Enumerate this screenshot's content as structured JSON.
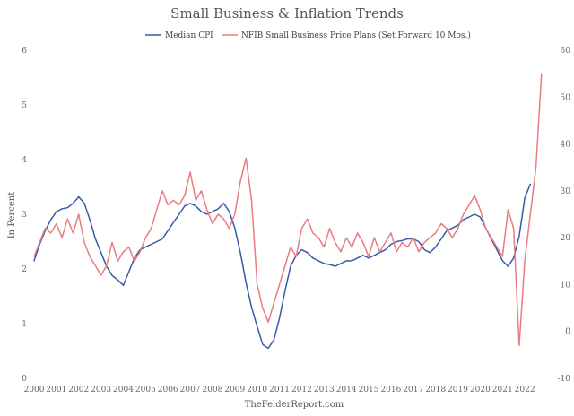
{
  "chart_data": {
    "type": "line",
    "title": "Small Business & Inflation Trends",
    "ylabel": "In Percent",
    "y2label": "",
    "source": "TheFelderReport.com",
    "ylim": [
      0,
      6
    ],
    "y2lim": [
      -10,
      60
    ],
    "xlim": [
      2000,
      2023
    ],
    "x_ticks": [
      2000,
      2001,
      2002,
      2003,
      2004,
      2005,
      2006,
      2007,
      2008,
      2009,
      2010,
      2011,
      2012,
      2013,
      2014,
      2015,
      2016,
      2017,
      2018,
      2019,
      2020,
      2021,
      2022
    ],
    "y_ticks": [
      0,
      1,
      2,
      3,
      4,
      5,
      6
    ],
    "y2_ticks": [
      -10,
      0,
      10,
      20,
      30,
      40,
      50,
      60
    ],
    "legend_position": "top-center",
    "grid": false,
    "series": [
      {
        "name": "Median CPI",
        "axis": "left",
        "color": "#3a5aa5",
        "x": [
          2000.0,
          2000.25,
          2000.5,
          2000.75,
          2001.0,
          2001.25,
          2001.5,
          2001.75,
          2002.0,
          2002.25,
          2002.5,
          2002.75,
          2003.0,
          2003.25,
          2003.5,
          2003.75,
          2004.0,
          2004.25,
          2004.5,
          2004.75,
          2005.0,
          2005.25,
          2005.5,
          2005.75,
          2006.0,
          2006.25,
          2006.5,
          2006.75,
          2007.0,
          2007.25,
          2007.5,
          2007.75,
          2008.0,
          2008.25,
          2008.5,
          2008.75,
          2009.0,
          2009.25,
          2009.5,
          2009.75,
          2010.0,
          2010.25,
          2010.5,
          2010.75,
          2011.0,
          2011.25,
          2011.5,
          2011.75,
          2012.0,
          2012.25,
          2012.5,
          2012.75,
          2013.0,
          2013.25,
          2013.5,
          2013.75,
          2014.0,
          2014.25,
          2014.5,
          2014.75,
          2015.0,
          2015.25,
          2015.5,
          2015.75,
          2016.0,
          2016.25,
          2016.5,
          2016.75,
          2017.0,
          2017.25,
          2017.5,
          2017.75,
          2018.0,
          2018.25,
          2018.5,
          2018.75,
          2019.0,
          2019.25,
          2019.5,
          2019.75,
          2020.0,
          2020.25,
          2020.5,
          2020.75,
          2021.0,
          2021.25,
          2021.5,
          2021.75,
          2022.0,
          2022.25
        ],
        "values": [
          2.15,
          2.45,
          2.7,
          2.9,
          3.05,
          3.1,
          3.12,
          3.2,
          3.32,
          3.2,
          2.9,
          2.55,
          2.3,
          2.05,
          1.88,
          1.8,
          1.7,
          1.95,
          2.2,
          2.35,
          2.4,
          2.45,
          2.5,
          2.55,
          2.7,
          2.85,
          3.0,
          3.15,
          3.2,
          3.15,
          3.05,
          3.0,
          3.05,
          3.1,
          3.2,
          3.05,
          2.75,
          2.3,
          1.75,
          1.3,
          0.95,
          0.62,
          0.55,
          0.7,
          1.1,
          1.6,
          2.05,
          2.25,
          2.35,
          2.3,
          2.2,
          2.15,
          2.1,
          2.08,
          2.05,
          2.1,
          2.15,
          2.15,
          2.2,
          2.25,
          2.2,
          2.25,
          2.3,
          2.35,
          2.45,
          2.5,
          2.52,
          2.55,
          2.55,
          2.5,
          2.35,
          2.3,
          2.4,
          2.55,
          2.7,
          2.75,
          2.8,
          2.9,
          2.95,
          3.0,
          2.95,
          2.75,
          2.55,
          2.35,
          2.15,
          2.05,
          2.2,
          2.6,
          3.3,
          3.55
        ]
      },
      {
        "name": "NFIB Small Business Price Plans (Set Forward 10 Mos.)",
        "axis": "right",
        "color": "#e87c80",
        "x": [
          2000.0,
          2000.25,
          2000.5,
          2000.75,
          2001.0,
          2001.25,
          2001.5,
          2001.75,
          2002.0,
          2002.25,
          2002.5,
          2002.75,
          2003.0,
          2003.25,
          2003.5,
          2003.75,
          2004.0,
          2004.25,
          2004.5,
          2004.75,
          2005.0,
          2005.25,
          2005.5,
          2005.75,
          2006.0,
          2006.25,
          2006.5,
          2006.75,
          2007.0,
          2007.25,
          2007.5,
          2007.75,
          2008.0,
          2008.25,
          2008.5,
          2008.75,
          2009.0,
          2009.25,
          2009.5,
          2009.75,
          2010.0,
          2010.25,
          2010.5,
          2010.75,
          2011.0,
          2011.25,
          2011.5,
          2011.75,
          2012.0,
          2012.25,
          2012.5,
          2012.75,
          2013.0,
          2013.25,
          2013.5,
          2013.75,
          2014.0,
          2014.25,
          2014.5,
          2014.75,
          2015.0,
          2015.25,
          2015.5,
          2015.75,
          2016.0,
          2016.25,
          2016.5,
          2016.75,
          2017.0,
          2017.25,
          2017.5,
          2017.75,
          2018.0,
          2018.25,
          2018.5,
          2018.75,
          2019.0,
          2019.25,
          2019.5,
          2019.75,
          2020.0,
          2020.25,
          2020.5,
          2020.75,
          2021.0,
          2021.25,
          2021.5,
          2021.75,
          2022.0,
          2022.25,
          2022.5,
          2022.75
        ],
        "values": [
          16,
          19,
          22,
          21,
          23,
          20,
          24,
          21,
          25,
          19,
          16,
          14,
          12,
          14,
          19,
          15,
          17,
          18,
          15,
          17,
          20,
          22,
          26,
          30,
          27,
          28,
          27,
          29,
          34,
          28,
          30,
          26,
          23,
          25,
          24,
          22,
          25,
          32,
          37,
          28,
          10,
          5,
          2,
          6,
          10,
          14,
          18,
          16,
          22,
          24,
          21,
          20,
          18,
          22,
          19,
          17,
          20,
          18,
          21,
          19,
          16,
          20,
          17,
          19,
          21,
          17,
          19,
          18,
          20,
          17,
          19,
          20,
          21,
          23,
          22,
          20,
          22,
          25,
          27,
          29,
          26,
          22,
          20,
          18,
          16,
          26,
          22,
          -3,
          15,
          25,
          35,
          55
        ]
      }
    ]
  }
}
